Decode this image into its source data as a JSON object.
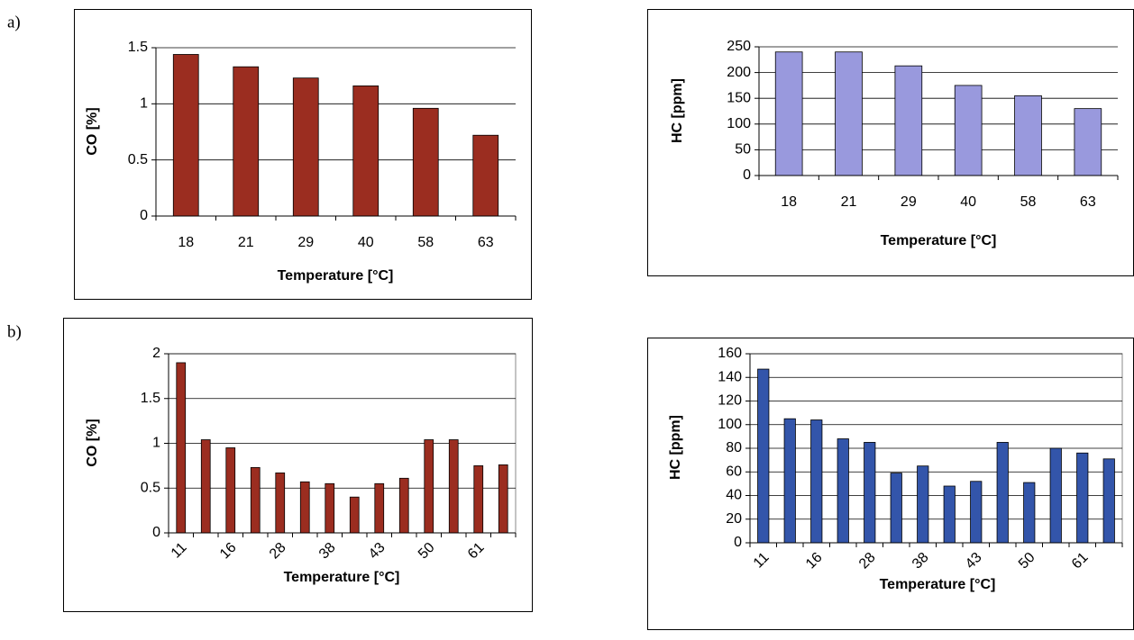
{
  "labels": {
    "a": "a)",
    "b": "b)"
  },
  "chart_data": [
    {
      "type": "bar",
      "ylabel": "CO [%]",
      "xlabel": "Temperature [°C]",
      "categories": [
        "18",
        "21",
        "29",
        "40",
        "58",
        "63"
      ],
      "values": [
        1.44,
        1.33,
        1.23,
        1.16,
        0.96,
        0.72
      ],
      "color": "#9b2d20",
      "ylim": [
        0,
        1.5
      ],
      "yticks": [
        0,
        0.5,
        1,
        1.5
      ],
      "grid": true
    },
    {
      "type": "bar",
      "ylabel": "HC [ppm]",
      "xlabel": "Temperature [°C]",
      "categories": [
        "18",
        "21",
        "29",
        "40",
        "58",
        "63"
      ],
      "values": [
        240,
        240,
        213,
        175,
        155,
        130
      ],
      "color": "#9999dd",
      "ylim": [
        0,
        250
      ],
      "yticks": [
        0,
        50,
        100,
        150,
        200,
        250
      ],
      "grid": true
    },
    {
      "type": "bar",
      "ylabel": "CO [%]",
      "xlabel": "Temperature [°C]",
      "categories": [
        "11",
        null,
        "16",
        null,
        "28",
        null,
        "38",
        null,
        "43",
        null,
        "50",
        null,
        "61",
        null
      ],
      "values": [
        1.9,
        1.04,
        0.95,
        0.73,
        0.67,
        0.57,
        0.55,
        0.4,
        0.55,
        0.61,
        1.04,
        1.04,
        0.75,
        0.76
      ],
      "color": "#9b2d20",
      "ylim": [
        0,
        2
      ],
      "yticks": [
        0,
        0.5,
        1,
        1.5,
        2
      ],
      "grid": true
    },
    {
      "type": "bar",
      "ylabel": "HC [ppm]",
      "xlabel": "Temperature [°C]",
      "categories": [
        "11",
        null,
        "16",
        null,
        "28",
        null,
        "38",
        null,
        "43",
        null,
        "50",
        null,
        "61",
        null
      ],
      "values": [
        147,
        105,
        104,
        88,
        85,
        59,
        65,
        48,
        52,
        85,
        51,
        80,
        76,
        71
      ],
      "color": "#3355aa",
      "ylim": [
        0,
        160
      ],
      "yticks": [
        0,
        20,
        40,
        60,
        80,
        100,
        120,
        140,
        160
      ],
      "grid": true
    }
  ]
}
